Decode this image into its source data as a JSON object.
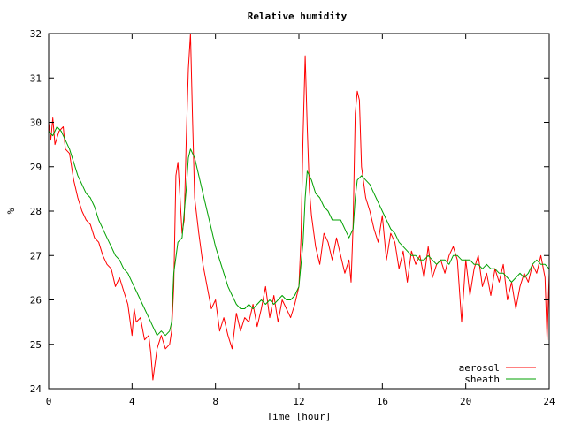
{
  "chart_data": {
    "type": "line",
    "title": "Relative humidity",
    "xlabel": "Time [hour]",
    "ylabel": "%",
    "xlim": [
      0,
      24
    ],
    "ylim": [
      24,
      32
    ],
    "xticks": [
      0,
      4,
      8,
      12,
      16,
      20,
      24
    ],
    "xtick_labels": [
      "0",
      "4",
      "8",
      "12",
      "16",
      "20",
      "24"
    ],
    "yticks": [
      24,
      25,
      26,
      27,
      28,
      29,
      30,
      31,
      32
    ],
    "ytick_labels": [
      "24",
      "25",
      "26",
      "27",
      "28",
      "29",
      "30",
      "31",
      "32"
    ],
    "grid": false,
    "legend_position": "bottom-right",
    "series": [
      {
        "name": "aerosol",
        "color": "#ff0000",
        "x": [
          0,
          0.1,
          0.2,
          0.3,
          0.5,
          0.7,
          0.8,
          1.0,
          1.2,
          1.4,
          1.6,
          1.8,
          2.0,
          2.2,
          2.4,
          2.6,
          2.8,
          3.0,
          3.2,
          3.4,
          3.6,
          3.8,
          4.0,
          4.1,
          4.2,
          4.4,
          4.6,
          4.8,
          4.9,
          5.0,
          5.2,
          5.4,
          5.6,
          5.8,
          5.9,
          6.0,
          6.1,
          6.2,
          6.3,
          6.4,
          6.5,
          6.6,
          6.7,
          6.8,
          6.9,
          7.0,
          7.2,
          7.4,
          7.6,
          7.8,
          8.0,
          8.2,
          8.4,
          8.6,
          8.8,
          9.0,
          9.2,
          9.4,
          9.6,
          9.8,
          10.0,
          10.2,
          10.4,
          10.6,
          10.8,
          11.0,
          11.2,
          11.4,
          11.6,
          11.8,
          12.0,
          12.1,
          12.2,
          12.3,
          12.4,
          12.5,
          12.6,
          12.8,
          13.0,
          13.2,
          13.4,
          13.6,
          13.8,
          14.0,
          14.2,
          14.4,
          14.5,
          14.6,
          14.7,
          14.8,
          14.9,
          15.0,
          15.2,
          15.4,
          15.6,
          15.8,
          16.0,
          16.2,
          16.4,
          16.6,
          16.8,
          17.0,
          17.2,
          17.4,
          17.6,
          17.8,
          18.0,
          18.2,
          18.4,
          18.6,
          18.8,
          19.0,
          19.2,
          19.4,
          19.6,
          19.8,
          20.0,
          20.2,
          20.4,
          20.6,
          20.8,
          21.0,
          21.2,
          21.4,
          21.6,
          21.8,
          22.0,
          22.2,
          22.4,
          22.6,
          22.8,
          23.0,
          23.2,
          23.4,
          23.6,
          23.8,
          23.9,
          24.0
        ],
        "y": [
          30.0,
          29.6,
          30.1,
          29.5,
          29.8,
          29.9,
          29.4,
          29.3,
          28.7,
          28.3,
          28.0,
          27.8,
          27.7,
          27.4,
          27.3,
          27.0,
          26.8,
          26.7,
          26.3,
          26.5,
          26.2,
          25.9,
          25.2,
          25.8,
          25.5,
          25.6,
          25.1,
          25.2,
          24.8,
          24.2,
          24.9,
          25.2,
          24.9,
          25.0,
          25.3,
          26.3,
          28.8,
          29.1,
          28.3,
          27.5,
          27.8,
          29.6,
          31.2,
          32.0,
          30.1,
          28.3,
          27.5,
          26.8,
          26.3,
          25.8,
          26.0,
          25.3,
          25.6,
          25.2,
          24.9,
          25.7,
          25.3,
          25.6,
          25.5,
          25.9,
          25.4,
          25.8,
          26.3,
          25.6,
          26.1,
          25.5,
          26.0,
          25.8,
          25.6,
          25.9,
          26.3,
          27.4,
          29.7,
          31.5,
          29.9,
          28.5,
          27.9,
          27.2,
          26.8,
          27.5,
          27.3,
          26.9,
          27.4,
          27.0,
          26.6,
          26.9,
          26.4,
          27.7,
          30.2,
          30.7,
          30.5,
          29.0,
          28.3,
          28.0,
          27.6,
          27.3,
          27.9,
          26.9,
          27.5,
          27.3,
          26.7,
          27.1,
          26.4,
          27.1,
          26.8,
          27.0,
          26.5,
          27.2,
          26.5,
          26.8,
          26.9,
          26.6,
          27.0,
          27.2,
          26.9,
          25.5,
          26.9,
          26.1,
          26.7,
          27.0,
          26.3,
          26.6,
          26.1,
          26.7,
          26.4,
          26.8,
          26.0,
          26.4,
          25.8,
          26.3,
          26.6,
          26.4,
          26.8,
          26.6,
          27.0,
          26.5,
          25.1,
          26.6
        ]
      },
      {
        "name": "sheath",
        "color": "#00a000",
        "x": [
          0,
          0.2,
          0.4,
          0.6,
          0.8,
          1.0,
          1.2,
          1.4,
          1.6,
          1.8,
          2.0,
          2.2,
          2.4,
          2.6,
          2.8,
          3.0,
          3.2,
          3.4,
          3.6,
          3.8,
          4.0,
          4.2,
          4.4,
          4.6,
          4.8,
          5.0,
          5.2,
          5.4,
          5.6,
          5.8,
          5.9,
          6.0,
          6.2,
          6.4,
          6.6,
          6.7,
          6.8,
          7.0,
          7.2,
          7.4,
          7.6,
          7.8,
          8.0,
          8.2,
          8.4,
          8.6,
          8.8,
          9.0,
          9.2,
          9.4,
          9.6,
          9.8,
          10.0,
          10.2,
          10.4,
          10.6,
          10.8,
          11.0,
          11.2,
          11.4,
          11.6,
          11.8,
          12.0,
          12.2,
          12.3,
          12.4,
          12.6,
          12.8,
          13.0,
          13.2,
          13.4,
          13.6,
          13.8,
          14.0,
          14.2,
          14.4,
          14.6,
          14.7,
          14.8,
          15.0,
          15.2,
          15.4,
          15.6,
          15.8,
          16.0,
          16.2,
          16.4,
          16.6,
          16.8,
          17.0,
          17.2,
          17.4,
          17.6,
          17.8,
          18.0,
          18.2,
          18.4,
          18.6,
          18.8,
          19.0,
          19.2,
          19.4,
          19.6,
          19.8,
          20.0,
          20.2,
          20.4,
          20.6,
          20.8,
          21.0,
          21.2,
          21.4,
          21.6,
          21.8,
          22.0,
          22.2,
          22.4,
          22.6,
          22.8,
          23.0,
          23.2,
          23.4,
          23.6,
          23.8,
          24.0
        ],
        "y": [
          29.8,
          29.7,
          29.9,
          29.8,
          29.6,
          29.4,
          29.1,
          28.8,
          28.6,
          28.4,
          28.3,
          28.1,
          27.8,
          27.6,
          27.4,
          27.2,
          27.0,
          26.9,
          26.7,
          26.6,
          26.4,
          26.2,
          26.0,
          25.8,
          25.6,
          25.4,
          25.2,
          25.3,
          25.2,
          25.3,
          25.5,
          26.6,
          27.3,
          27.4,
          28.5,
          29.2,
          29.4,
          29.2,
          28.8,
          28.4,
          28.0,
          27.6,
          27.2,
          26.9,
          26.6,
          26.3,
          26.1,
          25.9,
          25.8,
          25.8,
          25.9,
          25.8,
          25.9,
          26.0,
          25.9,
          26.0,
          25.9,
          26.0,
          26.1,
          26.0,
          26.0,
          26.1,
          26.3,
          27.3,
          28.3,
          28.9,
          28.7,
          28.4,
          28.3,
          28.1,
          28.0,
          27.8,
          27.8,
          27.8,
          27.6,
          27.4,
          27.6,
          28.3,
          28.7,
          28.8,
          28.7,
          28.6,
          28.4,
          28.2,
          28.0,
          27.8,
          27.6,
          27.5,
          27.3,
          27.2,
          27.1,
          27.0,
          27.0,
          26.9,
          26.9,
          27.0,
          26.9,
          26.8,
          26.9,
          26.9,
          26.8,
          27.0,
          27.0,
          26.9,
          26.9,
          26.9,
          26.8,
          26.8,
          26.7,
          26.8,
          26.7,
          26.7,
          26.6,
          26.6,
          26.5,
          26.4,
          26.5,
          26.6,
          26.5,
          26.6,
          26.8,
          26.9,
          26.8,
          26.8,
          26.7
        ]
      }
    ]
  }
}
